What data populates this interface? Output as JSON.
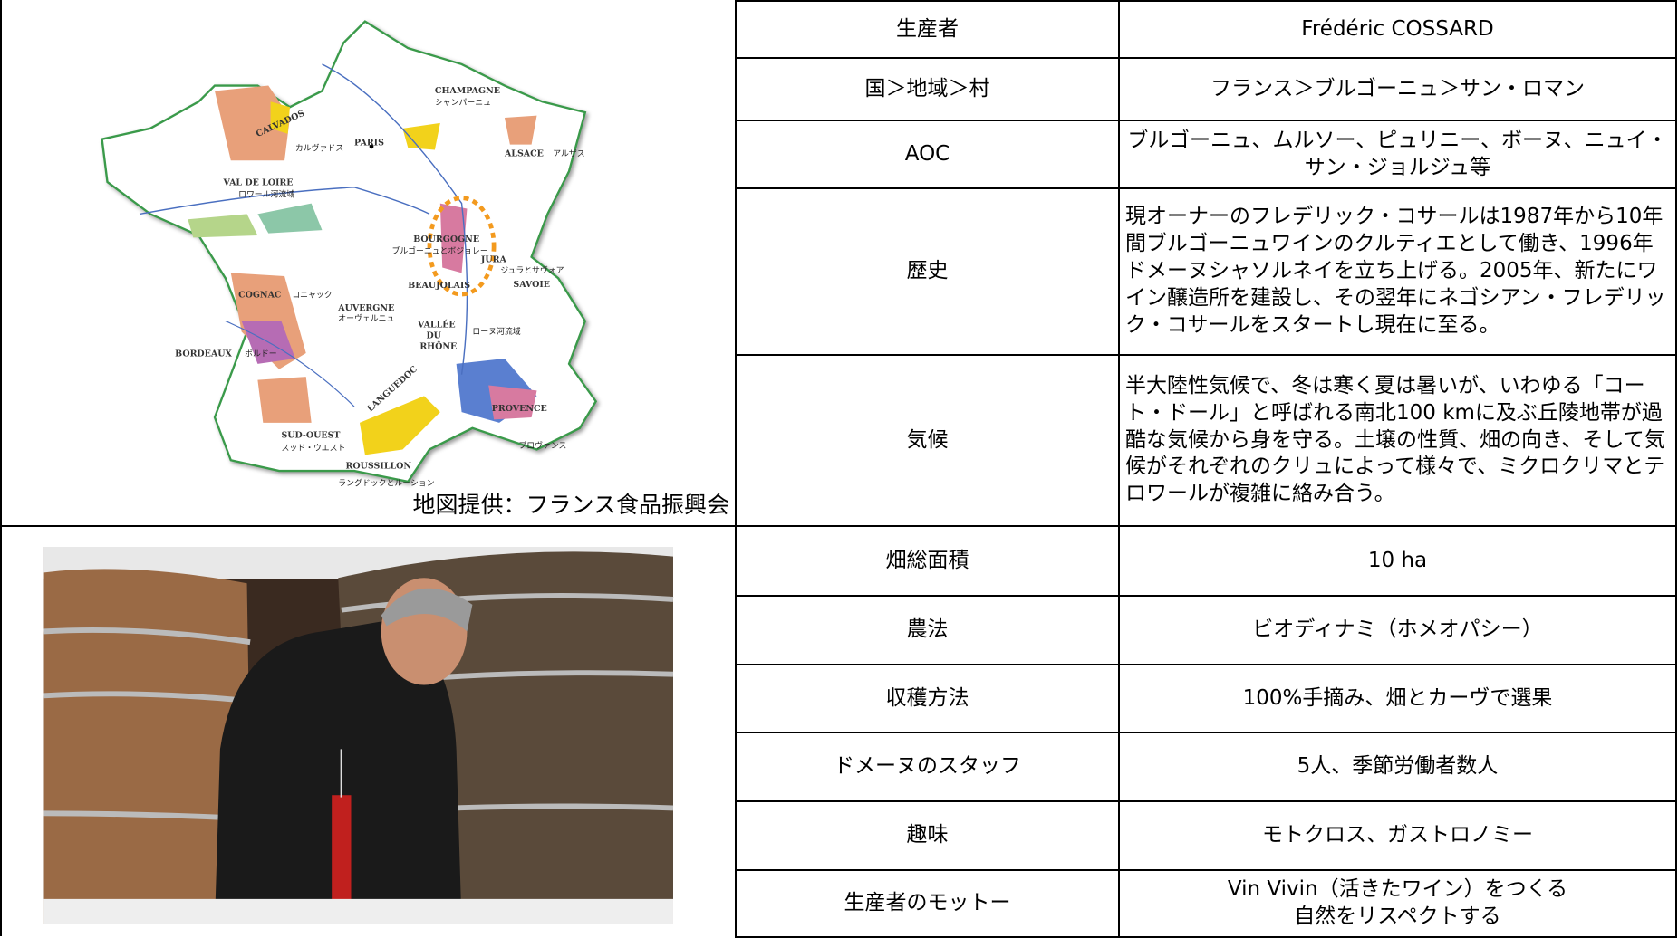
{
  "map": {
    "labels": [
      "CHAMPAGNE",
      "シャンパーニュ",
      "CALVADOS",
      "カルヴァドス",
      "PARIS",
      "ALSACE",
      "アルザス",
      "VAL DE LOIRE",
      "ロワール河流域",
      "BOURGOGNE",
      "ブルゴーニュとボジョレー",
      "JURA",
      "ジュラとサヴォア",
      "SAVOIE",
      "BEAUJOLAIS",
      "COGNAC",
      "コニャック",
      "AUVERGNE",
      "オーヴェルニュ",
      "BORDEAUX",
      "ボルドー",
      "VALLÉE\nDU\nRHÔNE",
      "ローヌ河流域",
      "LANGUEDOC",
      "PROVENCE",
      "プロヴァンス",
      "SUD-OUEST",
      "スッド・ウエスト",
      "ROUSSILLON",
      "ラングドックとルーション"
    ],
    "caption": "地図提供：フランス食品振興会"
  },
  "table": {
    "rows": [
      [
        "生産者",
        "Frédéric COSSARD"
      ],
      [
        "国＞地域＞村",
        "フランス＞ブルゴーニュ＞サン・ロマン"
      ],
      [
        "AOC",
        "ブルゴーニュ、ムルソー、ピュリニー、ボーヌ、ニュイ・サン・ジョルジュ等"
      ],
      [
        "歴史",
        "現オーナーのフレデリック・コサールは1987年から10年間ブルゴーニュワインのクルティエとして働き、1996年ドメーヌシャソルネイを立ち上げる。2005年、新たにワイン醸造所を建設し、その翌年にネゴシアン・フレデリック・コサールをスタートし現在に至る。"
      ],
      [
        "気候",
        "半大陸性気候で、冬は寒く夏は暑いが、いわゆる「コート・ドール」と呼ばれる南北100 kmに及ぶ丘陵地帯が過酷な気候から身を守る。土壌の性質、畑の向き、そして気候がそれぞれのクリュによって様々で、ミクロクリマとテロワールが複雑に絡み合う。"
      ],
      [
        "畑総面積",
        "10 ha"
      ],
      [
        "農法",
        "ビオディナミ（ホメオパシー）"
      ],
      [
        "収穫方法",
        "100%手摘み、畑とカーヴで選果"
      ],
      [
        "ドメーヌのスタッフ",
        "5人、季節労働者数人"
      ],
      [
        "趣味",
        "モトクロス、ガストロノミー"
      ],
      [
        "生産者のモットー",
        "Vin Vivin（活きたワイン）をつくる\n自然をリスペクトする"
      ]
    ]
  }
}
